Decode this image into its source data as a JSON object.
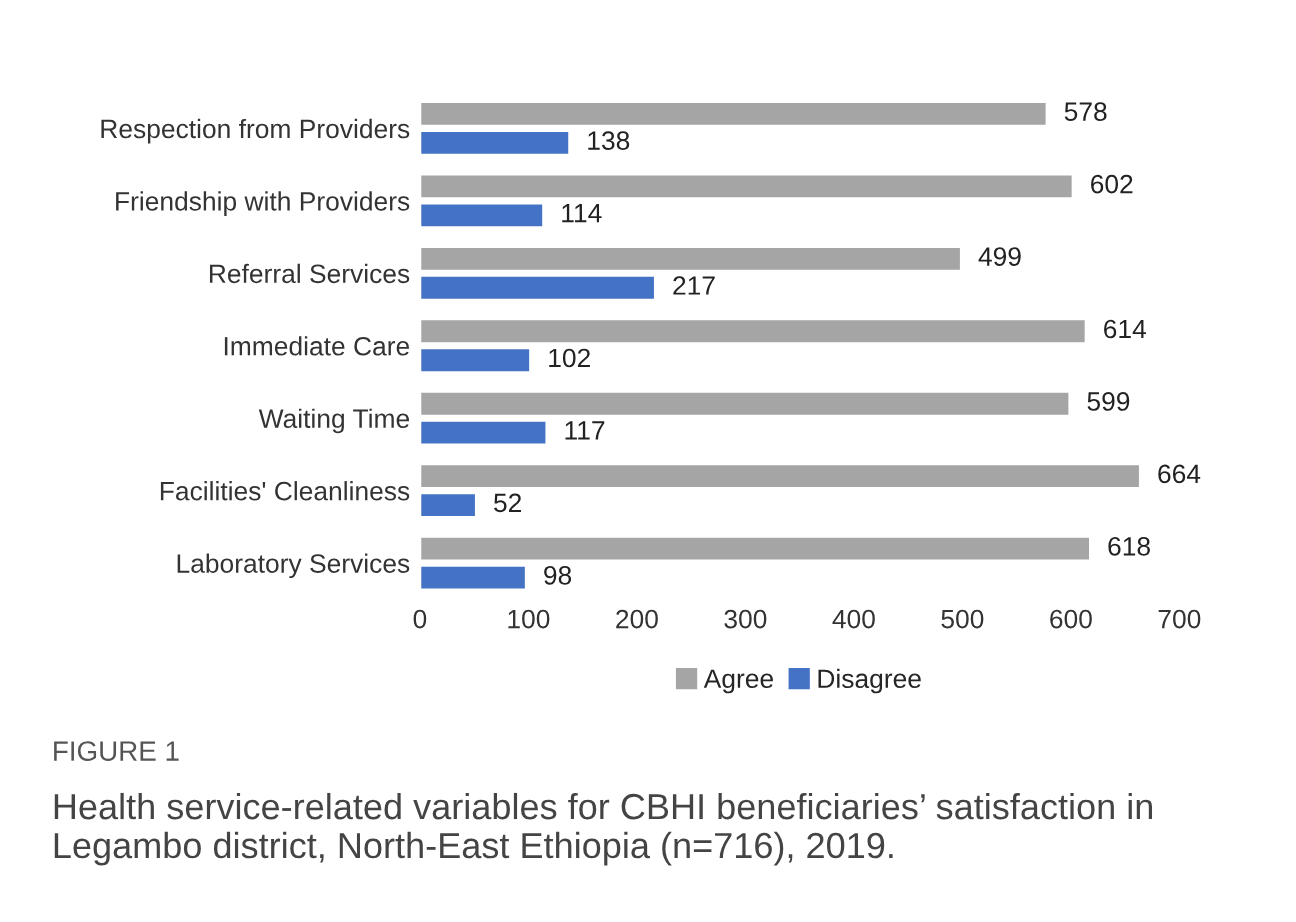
{
  "chart_data": {
    "type": "bar",
    "orientation": "horizontal",
    "categories": [
      "Respection from Providers",
      "Friendship with Providers",
      "Referral Services",
      "Immediate Care",
      "Waiting Time",
      "Facilities' Cleanliness",
      "Laboratory Services"
    ],
    "series": [
      {
        "name": "Agree",
        "color": "#a5a5a5",
        "values": [
          578,
          602,
          499,
          614,
          599,
          664,
          618
        ]
      },
      {
        "name": "Disagree",
        "color": "#4472c4",
        "values": [
          138,
          114,
          217,
          102,
          117,
          52,
          98
        ]
      }
    ],
    "xlim": [
      0,
      700
    ],
    "xticks": [
      0,
      100,
      200,
      300,
      400,
      500,
      600,
      700
    ],
    "data_labels": true,
    "legend": "bottom",
    "grid": false,
    "annotations": [
      "FIGURE 1",
      "Health service-related variables for CBHI beneficiaries’ satisfaction in Legambo district, North-East Ethiopia (n=716), 2019."
    ]
  }
}
